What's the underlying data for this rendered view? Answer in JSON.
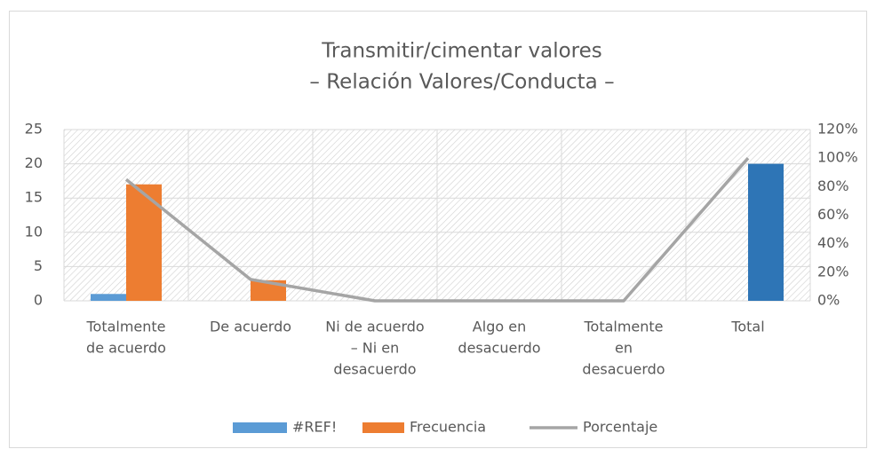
{
  "chart_data": {
    "type": "bar",
    "title": [
      "Transmitir/cimentar valores",
      "– Relación Valores/Conducta –"
    ],
    "categories": [
      [
        "Totalmente",
        "de acuerdo"
      ],
      [
        "De acuerdo"
      ],
      [
        "Ni de acuerdo",
        "– Ni en",
        "desacuerdo"
      ],
      [
        "Algo en",
        "desacuerdo"
      ],
      [
        "Totalmente",
        "en",
        "desacuerdo"
      ],
      [
        "Total"
      ]
    ],
    "series": [
      {
        "name": "#REF!",
        "type": "bar",
        "color": "#5b9bd5",
        "values": [
          1,
          0,
          0,
          0,
          0,
          0
        ]
      },
      {
        "name": "Frecuencia",
        "type": "bar",
        "color": "#ed7d31",
        "point_colors": [
          null,
          null,
          null,
          null,
          null,
          "#2e75b6"
        ],
        "values": [
          17,
          3,
          0,
          0,
          0,
          20
        ]
      },
      {
        "name": "Porcentaje",
        "type": "line",
        "axis": "y2",
        "color": "#a5a5a5",
        "values": [
          85,
          15,
          0,
          0,
          0,
          100
        ]
      }
    ],
    "ylim": [
      0,
      25
    ],
    "yticks": [
      0,
      5,
      10,
      15,
      20,
      25
    ],
    "y2lim": [
      0,
      120
    ],
    "y2ticks": [
      {
        "value": 0,
        "label": "0%"
      },
      {
        "value": 20,
        "label": "20%"
      },
      {
        "value": 40,
        "label": "40%"
      },
      {
        "value": 60,
        "label": "60%"
      },
      {
        "value": 80,
        "label": "80%"
      },
      {
        "value": 100,
        "label": "100%"
      },
      {
        "value": 120,
        "label": "120%"
      }
    ],
    "grid": true,
    "legend": "bottom"
  }
}
